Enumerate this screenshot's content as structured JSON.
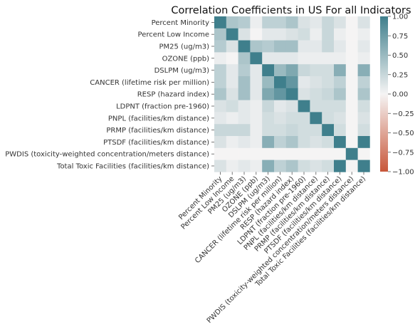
{
  "chart_data": {
    "type": "heatmap",
    "title": "Correlation Coefficients in US For all Indicators",
    "labels": [
      "Percent Minority",
      "Percent Low Income",
      "PM25 (ug/m3)",
      "OZONE (ppb)",
      "DSLPM (ug/m3)",
      "CANCER (lifetime risk per million)",
      "RESP (hazard index)",
      "LDPNT (fraction pre-1960)",
      "PNPL (facilities/km distance)",
      "PRMP (facilities/km distance)",
      "PTSDF (facilities/km distance)",
      "PWDIS (toxicity-weighted concentration/meters distance)",
      "Total Toxic Facilities (facilities/km distance)"
    ],
    "matrix": [
      [
        1.0,
        0.4,
        0.35,
        0.05,
        0.3,
        0.3,
        0.4,
        0.15,
        0.1,
        0.25,
        0.15,
        0.0,
        0.15
      ],
      [
        0.4,
        1.0,
        0.15,
        0.0,
        0.1,
        0.1,
        0.15,
        0.2,
        0.05,
        0.25,
        0.05,
        0.0,
        0.05
      ],
      [
        0.35,
        0.15,
        1.0,
        0.4,
        0.35,
        0.45,
        0.45,
        0.1,
        0.1,
        0.25,
        0.1,
        0.0,
        0.1
      ],
      [
        0.05,
        0.0,
        0.4,
        1.0,
        0.1,
        0.1,
        0.1,
        0.05,
        0.05,
        0.05,
        0.05,
        0.0,
        0.05
      ],
      [
        0.3,
        0.1,
        0.35,
        0.1,
        1.0,
        0.5,
        0.65,
        0.25,
        0.2,
        0.2,
        0.6,
        0.0,
        0.6
      ],
      [
        0.3,
        0.1,
        0.45,
        0.1,
        0.5,
        1.0,
        0.8,
        0.1,
        0.15,
        0.2,
        0.3,
        0.0,
        0.3
      ],
      [
        0.4,
        0.15,
        0.45,
        0.1,
        0.65,
        0.8,
        1.0,
        0.15,
        0.2,
        0.25,
        0.4,
        0.0,
        0.4
      ],
      [
        0.15,
        0.2,
        0.1,
        0.05,
        0.25,
        0.1,
        0.15,
        1.0,
        0.2,
        0.2,
        0.2,
        0.0,
        0.2
      ],
      [
        0.1,
        0.05,
        0.1,
        0.05,
        0.2,
        0.15,
        0.2,
        0.2,
        1.0,
        0.2,
        0.15,
        0.0,
        0.15
      ],
      [
        0.25,
        0.25,
        0.25,
        0.05,
        0.2,
        0.2,
        0.25,
        0.2,
        0.2,
        1.0,
        0.2,
        0.0,
        0.2
      ],
      [
        0.15,
        0.05,
        0.1,
        0.05,
        0.6,
        0.3,
        0.4,
        0.2,
        0.15,
        0.2,
        1.0,
        0.0,
        1.0
      ],
      [
        0.0,
        0.0,
        0.0,
        0.0,
        0.0,
        0.0,
        0.0,
        0.0,
        0.0,
        0.0,
        0.0,
        1.0,
        0.0
      ],
      [
        0.15,
        0.05,
        0.1,
        0.05,
        0.6,
        0.3,
        0.4,
        0.2,
        0.15,
        0.2,
        1.0,
        0.0,
        1.0
      ]
    ],
    "colorbar": {
      "min": -1.0,
      "max": 1.0,
      "ticks": [
        1.0,
        0.75,
        0.5,
        0.25,
        0.0,
        -0.25,
        -0.5,
        -0.75,
        -1.0
      ],
      "tick_labels": [
        "1.00",
        "0.75",
        "0.50",
        "0.25",
        "0.00",
        "−0.25",
        "−0.50",
        "−0.75",
        "−1.00"
      ],
      "colors": {
        "negative": "#c8573a",
        "center": "#f5f4f4",
        "positive": "#3f7f8c"
      }
    }
  }
}
